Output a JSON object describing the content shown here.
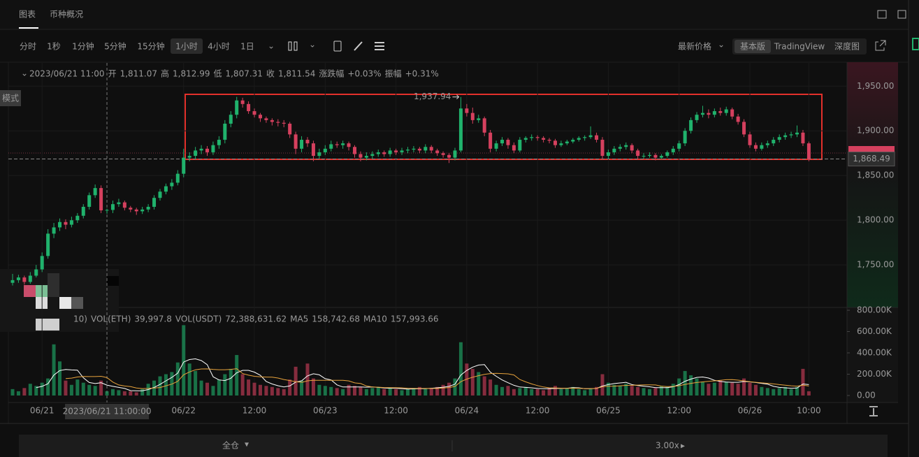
{
  "ui": {
    "tabs": [
      "图表",
      "币种概况"
    ],
    "intervals": [
      "分时",
      "1秒",
      "1分钟",
      "5分钟",
      "15分钟",
      "1小时",
      "4小时",
      "1日"
    ],
    "price_source": "最新价格",
    "views": [
      "基本版",
      "TradingView",
      "深度图"
    ],
    "mode": "模式",
    "margin_mode": "全仓",
    "leverage": "3.00x"
  },
  "chart_data": {
    "type": "candlestick",
    "legend": {
      "time": "2023/06/21 11:00",
      "open_label": "开",
      "open": "1,811.07",
      "high_label": "高",
      "high": "1,812.99",
      "low_label": "低",
      "low": "1,807.31",
      "close_label": "收",
      "close": "1,811.54",
      "change_label": "涨跌幅",
      "change": "+0.03%",
      "amplitude_label": "振幅",
      "amplitude": "+0.31%"
    },
    "up_color": "#20b26c",
    "down_color": "#d5405e",
    "grid": true,
    "ylim": [
      1704,
      1976
    ],
    "yticks": [
      {
        "value": 1750,
        "label": "1,750.00"
      },
      {
        "value": 1800,
        "label": "1,800.00"
      },
      {
        "value": 1850,
        "label": "1,850.00"
      },
      {
        "value": 1900,
        "label": "1,900.00"
      },
      {
        "value": 1950,
        "label": "1,950.00"
      }
    ],
    "xlim": [
      -0.71,
      141.47
    ],
    "xticks": [
      {
        "value": 5,
        "label": "06/21"
      },
      {
        "value": 29,
        "label": "06/22"
      },
      {
        "value": 41,
        "label": "12:00"
      },
      {
        "value": 53,
        "label": "06/23"
      },
      {
        "value": 65,
        "label": "12:00"
      },
      {
        "value": 77,
        "label": "06/24"
      },
      {
        "value": 89,
        "label": "12:00"
      },
      {
        "value": 101,
        "label": "06/25"
      },
      {
        "value": 113,
        "label": "12:00"
      },
      {
        "value": 125,
        "label": "06/26"
      },
      {
        "value": 135,
        "label": "10:00"
      }
    ],
    "max_label": "1,937.94",
    "crosshair_time": "2023/06/21 11:00:00",
    "price_tag": "1,868.49",
    "candles": [
      [
        1730,
        1740,
        1727,
        1733
      ],
      [
        1733,
        1739,
        1730,
        1736
      ],
      [
        1736,
        1738,
        1728,
        1731
      ],
      [
        1731,
        1742,
        1729,
        1738
      ],
      [
        1738,
        1750,
        1736,
        1745
      ],
      [
        1745,
        1764,
        1742,
        1760
      ],
      [
        1760,
        1790,
        1757,
        1785
      ],
      [
        1785,
        1797,
        1780,
        1792
      ],
      [
        1792,
        1802,
        1788,
        1798
      ],
      [
        1798,
        1801,
        1790,
        1795
      ],
      [
        1795,
        1804,
        1792,
        1800
      ],
      [
        1800,
        1808,
        1797,
        1805
      ],
      [
        1805,
        1818,
        1802,
        1815
      ],
      [
        1815,
        1831,
        1812,
        1828
      ],
      [
        1828,
        1840,
        1825,
        1836
      ],
      [
        1836,
        1839,
        1808,
        1811.07
      ],
      [
        1811.07,
        1812.99,
        1807.31,
        1811.54
      ],
      [
        1811.54,
        1822,
        1808,
        1818
      ],
      [
        1818,
        1824,
        1815,
        1820
      ],
      [
        1820,
        1822,
        1811,
        1814
      ],
      [
        1814,
        1816,
        1809,
        1812
      ],
      [
        1812,
        1814,
        1806,
        1810
      ],
      [
        1810,
        1815,
        1807,
        1812
      ],
      [
        1812,
        1818,
        1809,
        1815
      ],
      [
        1815,
        1828,
        1812,
        1825
      ],
      [
        1825,
        1835,
        1822,
        1832
      ],
      [
        1832,
        1841,
        1829,
        1838
      ],
      [
        1838,
        1846,
        1834,
        1842
      ],
      [
        1842,
        1856,
        1839,
        1852
      ],
      [
        1852,
        1880,
        1848,
        1870
      ],
      [
        1870,
        1876,
        1866,
        1872
      ],
      [
        1872,
        1882,
        1868,
        1878
      ],
      [
        1878,
        1884,
        1874,
        1880
      ],
      [
        1880,
        1883,
        1872,
        1876
      ],
      [
        1876,
        1888,
        1873,
        1884
      ],
      [
        1884,
        1894,
        1880,
        1890
      ],
      [
        1890,
        1912,
        1886,
        1908
      ],
      [
        1908,
        1922,
        1904,
        1918
      ],
      [
        1918,
        1938,
        1914,
        1934
      ],
      [
        1934,
        1937,
        1926,
        1930
      ],
      [
        1930,
        1933,
        1919,
        1922
      ],
      [
        1922,
        1925,
        1915,
        1918
      ],
      [
        1918,
        1920,
        1910,
        1914
      ],
      [
        1914,
        1916,
        1909,
        1912
      ],
      [
        1912,
        1914,
        1906,
        1910
      ],
      [
        1910,
        1913,
        1905,
        1909
      ],
      [
        1909,
        1912,
        1904,
        1908
      ],
      [
        1908,
        1910,
        1892,
        1896
      ],
      [
        1896,
        1899,
        1874,
        1880
      ],
      [
        1880,
        1894,
        1876,
        1890
      ],
      [
        1890,
        1893,
        1882,
        1886
      ],
      [
        1886,
        1889,
        1866,
        1872
      ],
      [
        1872,
        1880,
        1869,
        1876
      ],
      [
        1876,
        1884,
        1873,
        1880
      ],
      [
        1880,
        1889,
        1877,
        1885
      ],
      [
        1885,
        1888,
        1881,
        1884
      ],
      [
        1884,
        1889,
        1880,
        1886
      ],
      [
        1886,
        1888,
        1878,
        1882
      ],
      [
        1882,
        1884,
        1870,
        1874
      ],
      [
        1874,
        1877,
        1866,
        1870
      ],
      [
        1870,
        1876,
        1867,
        1872
      ],
      [
        1872,
        1877,
        1869,
        1874
      ],
      [
        1874,
        1879,
        1871,
        1876
      ],
      [
        1876,
        1878,
        1871,
        1874
      ],
      [
        1874,
        1881,
        1871,
        1878
      ],
      [
        1878,
        1880,
        1873,
        1876
      ],
      [
        1876,
        1881,
        1873,
        1878
      ],
      [
        1878,
        1882,
        1875,
        1879
      ],
      [
        1879,
        1883,
        1876,
        1880
      ],
      [
        1880,
        1882,
        1875,
        1878
      ],
      [
        1878,
        1885,
        1875,
        1882
      ],
      [
        1882,
        1884,
        1875,
        1878
      ],
      [
        1878,
        1880,
        1872,
        1875
      ],
      [
        1875,
        1877,
        1870,
        1873
      ],
      [
        1873,
        1875,
        1864,
        1870
      ],
      [
        1870,
        1881,
        1867,
        1878
      ],
      [
        1878,
        1937.94,
        1876,
        1925
      ],
      [
        1925,
        1930,
        1916,
        1920
      ],
      [
        1920,
        1926,
        1908,
        1912
      ],
      [
        1912,
        1918,
        1909,
        1914
      ],
      [
        1914,
        1916,
        1894,
        1898
      ],
      [
        1898,
        1901,
        1876,
        1880
      ],
      [
        1880,
        1889,
        1877,
        1886
      ],
      [
        1886,
        1893,
        1883,
        1890
      ],
      [
        1890,
        1892,
        1880,
        1884
      ],
      [
        1884,
        1887,
        1875,
        1878
      ],
      [
        1878,
        1893,
        1876,
        1890
      ],
      [
        1890,
        1894,
        1887,
        1892
      ],
      [
        1892,
        1896,
        1889,
        1893
      ],
      [
        1893,
        1895,
        1889,
        1892
      ],
      [
        1892,
        1894,
        1887,
        1890
      ],
      [
        1890,
        1892,
        1886,
        1889
      ],
      [
        1889,
        1891,
        1881,
        1884
      ],
      [
        1884,
        1889,
        1882,
        1886
      ],
      [
        1886,
        1890,
        1884,
        1888
      ],
      [
        1888,
        1892,
        1886,
        1890
      ],
      [
        1890,
        1894,
        1888,
        1892
      ],
      [
        1892,
        1895,
        1889,
        1893
      ],
      [
        1893,
        1905,
        1891,
        1895
      ],
      [
        1895,
        1898,
        1887,
        1890
      ],
      [
        1890,
        1893,
        1868,
        1872
      ],
      [
        1872,
        1879,
        1869,
        1876
      ],
      [
        1876,
        1883,
        1873,
        1880
      ],
      [
        1880,
        1885,
        1877,
        1882
      ],
      [
        1882,
        1887,
        1879,
        1884
      ],
      [
        1884,
        1886,
        1875,
        1878
      ],
      [
        1878,
        1880,
        1868,
        1872
      ],
      [
        1872,
        1875,
        1869,
        1872
      ],
      [
        1872,
        1876,
        1870,
        1873
      ],
      [
        1873,
        1875,
        1867,
        1870
      ],
      [
        1870,
        1874,
        1868,
        1872
      ],
      [
        1872,
        1878,
        1870,
        1876
      ],
      [
        1876,
        1883,
        1873,
        1880
      ],
      [
        1880,
        1889,
        1877,
        1886
      ],
      [
        1886,
        1903,
        1883,
        1900
      ],
      [
        1900,
        1915,
        1897,
        1912
      ],
      [
        1912,
        1921,
        1909,
        1918
      ],
      [
        1918,
        1928,
        1915,
        1920
      ],
      [
        1920,
        1924,
        1914,
        1918
      ],
      [
        1918,
        1925,
        1915,
        1922
      ],
      [
        1922,
        1926,
        1917,
        1920
      ],
      [
        1920,
        1927,
        1917,
        1924
      ],
      [
        1924,
        1926,
        1913,
        1916
      ],
      [
        1916,
        1919,
        1907,
        1910
      ],
      [
        1910,
        1913,
        1893,
        1896
      ],
      [
        1896,
        1899,
        1881,
        1884
      ],
      [
        1884,
        1887,
        1877,
        1880
      ],
      [
        1880,
        1887,
        1878,
        1884
      ],
      [
        1884,
        1889,
        1881,
        1886
      ],
      [
        1886,
        1893,
        1883,
        1890
      ],
      [
        1890,
        1896,
        1887,
        1893
      ],
      [
        1893,
        1898,
        1890,
        1895
      ],
      [
        1895,
        1899,
        1892,
        1896
      ],
      [
        1896,
        1906,
        1893,
        1898
      ],
      [
        1898,
        1901,
        1883,
        1886
      ],
      [
        1886,
        1888,
        1866,
        1868.49
      ]
    ],
    "volume": {
      "prefix": "10)",
      "items": [
        {
          "label": "VOL(ETH)",
          "value": "39,997.8"
        },
        {
          "label": "VOL(USDT)",
          "value": "72,388,631.62"
        },
        {
          "label": "MA5",
          "value": "158,742.68"
        },
        {
          "label": "MA10",
          "value": "157,993.66"
        }
      ],
      "ma5_color": "#ffffff",
      "ma10_color": "#e8a33c",
      "ylim": [
        0,
        800
      ],
      "yticks": [
        {
          "value": 0,
          "label": "0.00"
        },
        {
          "value": 200,
          "label": "200.00K"
        },
        {
          "value": 400,
          "label": "400.00K"
        },
        {
          "value": 600,
          "label": "600.00K"
        },
        {
          "value": 800,
          "label": "800.00K"
        }
      ],
      "values": [
        60,
        40,
        70,
        110,
        90,
        120,
        160,
        480,
        320,
        140,
        100,
        150,
        120,
        100,
        90,
        140,
        40,
        60,
        50,
        40,
        40,
        30,
        60,
        110,
        140,
        180,
        200,
        220,
        310,
        660,
        300,
        230,
        140,
        120,
        90,
        150,
        200,
        250,
        380,
        200,
        150,
        120,
        100,
        90,
        80,
        70,
        60,
        150,
        270,
        140,
        300,
        160,
        100,
        90,
        80,
        70,
        60,
        100,
        90,
        80,
        60,
        70,
        80,
        60,
        70,
        60,
        50,
        60,
        70,
        80,
        60,
        70,
        80,
        100,
        120,
        160,
        500,
        300,
        250,
        220,
        180,
        150,
        100,
        80,
        90,
        60,
        70,
        80,
        60,
        60,
        50,
        70,
        90,
        60,
        70,
        80,
        60,
        50,
        60,
        80,
        200,
        120,
        100,
        90,
        110,
        90,
        80,
        70,
        60,
        70,
        90,
        80,
        110,
        160,
        230,
        190,
        160,
        130,
        110,
        120,
        140,
        130,
        120,
        110,
        160,
        120,
        100,
        80,
        70,
        60,
        70,
        80,
        60,
        80,
        250,
        40
      ],
      "ma5": [
        null,
        null,
        null,
        null,
        74,
        86,
        110,
        192,
        234,
        244,
        240,
        238,
        166,
        122,
        112,
        120,
        98,
        86,
        76,
        66,
        46,
        44,
        44,
        56,
        76,
        104,
        138,
        170,
        210,
        314,
        338,
        344,
        328,
        290,
        176,
        146,
        140,
        162,
        214,
        236,
        236,
        220,
        190,
        132,
        108,
        92,
        80,
        90,
        126,
        138,
        184,
        204,
        194,
        158,
        146,
        100,
        80,
        80,
        80,
        80,
        78,
        80,
        76,
        70,
        68,
        68,
        64,
        60,
        62,
        64,
        64,
        68,
        72,
        78,
        86,
        106,
        192,
        236,
        266,
        286,
        290,
        220,
        180,
        146,
        120,
        96,
        80,
        76,
        72,
        66,
        64,
        64,
        66,
        66,
        68,
        74,
        72,
        64,
        64,
        66,
        90,
        102,
        112,
        118,
        124,
        102,
        94,
        88,
        82,
        74,
        74,
        74,
        82,
        102,
        134,
        154,
        170,
        174,
        164,
        142,
        132,
        126,
        124,
        124,
        132,
        128,
        122,
        114,
        106,
        86,
        76,
        72,
        68,
        70,
        108,
        102
      ],
      "ma10": [
        null,
        null,
        null,
        null,
        null,
        null,
        null,
        null,
        null,
        159,
        163,
        174,
        179,
        178,
        178,
        180,
        168,
        126,
        99,
        89,
        83,
        71,
        65,
        66,
        71,
        75,
        91,
        107,
        133,
        195,
        221,
        241,
        249,
        250,
        245,
        242,
        242,
        245,
        252,
        206,
        191,
        180,
        176,
        173,
        172,
        164,
        150,
        140,
        129,
        123,
        138,
        142,
        142,
        142,
        142,
        142,
        142,
        137,
        119,
        113,
        89,
        80,
        78,
        75,
        74,
        73,
        72,
        68,
        66,
        66,
        66,
        66,
        66,
        70,
        75,
        85,
        130,
        154,
        172,
        186,
        198,
        206,
        208,
        206,
        203,
        193,
        150,
        128,
        109,
        93,
        80,
        72,
        71,
        69,
        67,
        69,
        68,
        65,
        65,
        67,
        82,
        87,
        88,
        91,
        95,
        96,
        98,
        100,
        100,
        99,
        88,
        84,
        85,
        92,
        104,
        114,
        122,
        128,
        133,
        138,
        143,
        148,
        149,
        144,
        137,
        130,
        124,
        119,
        115,
        109,
        102,
        97,
        91,
        88,
        97,
        89
      ]
    }
  }
}
